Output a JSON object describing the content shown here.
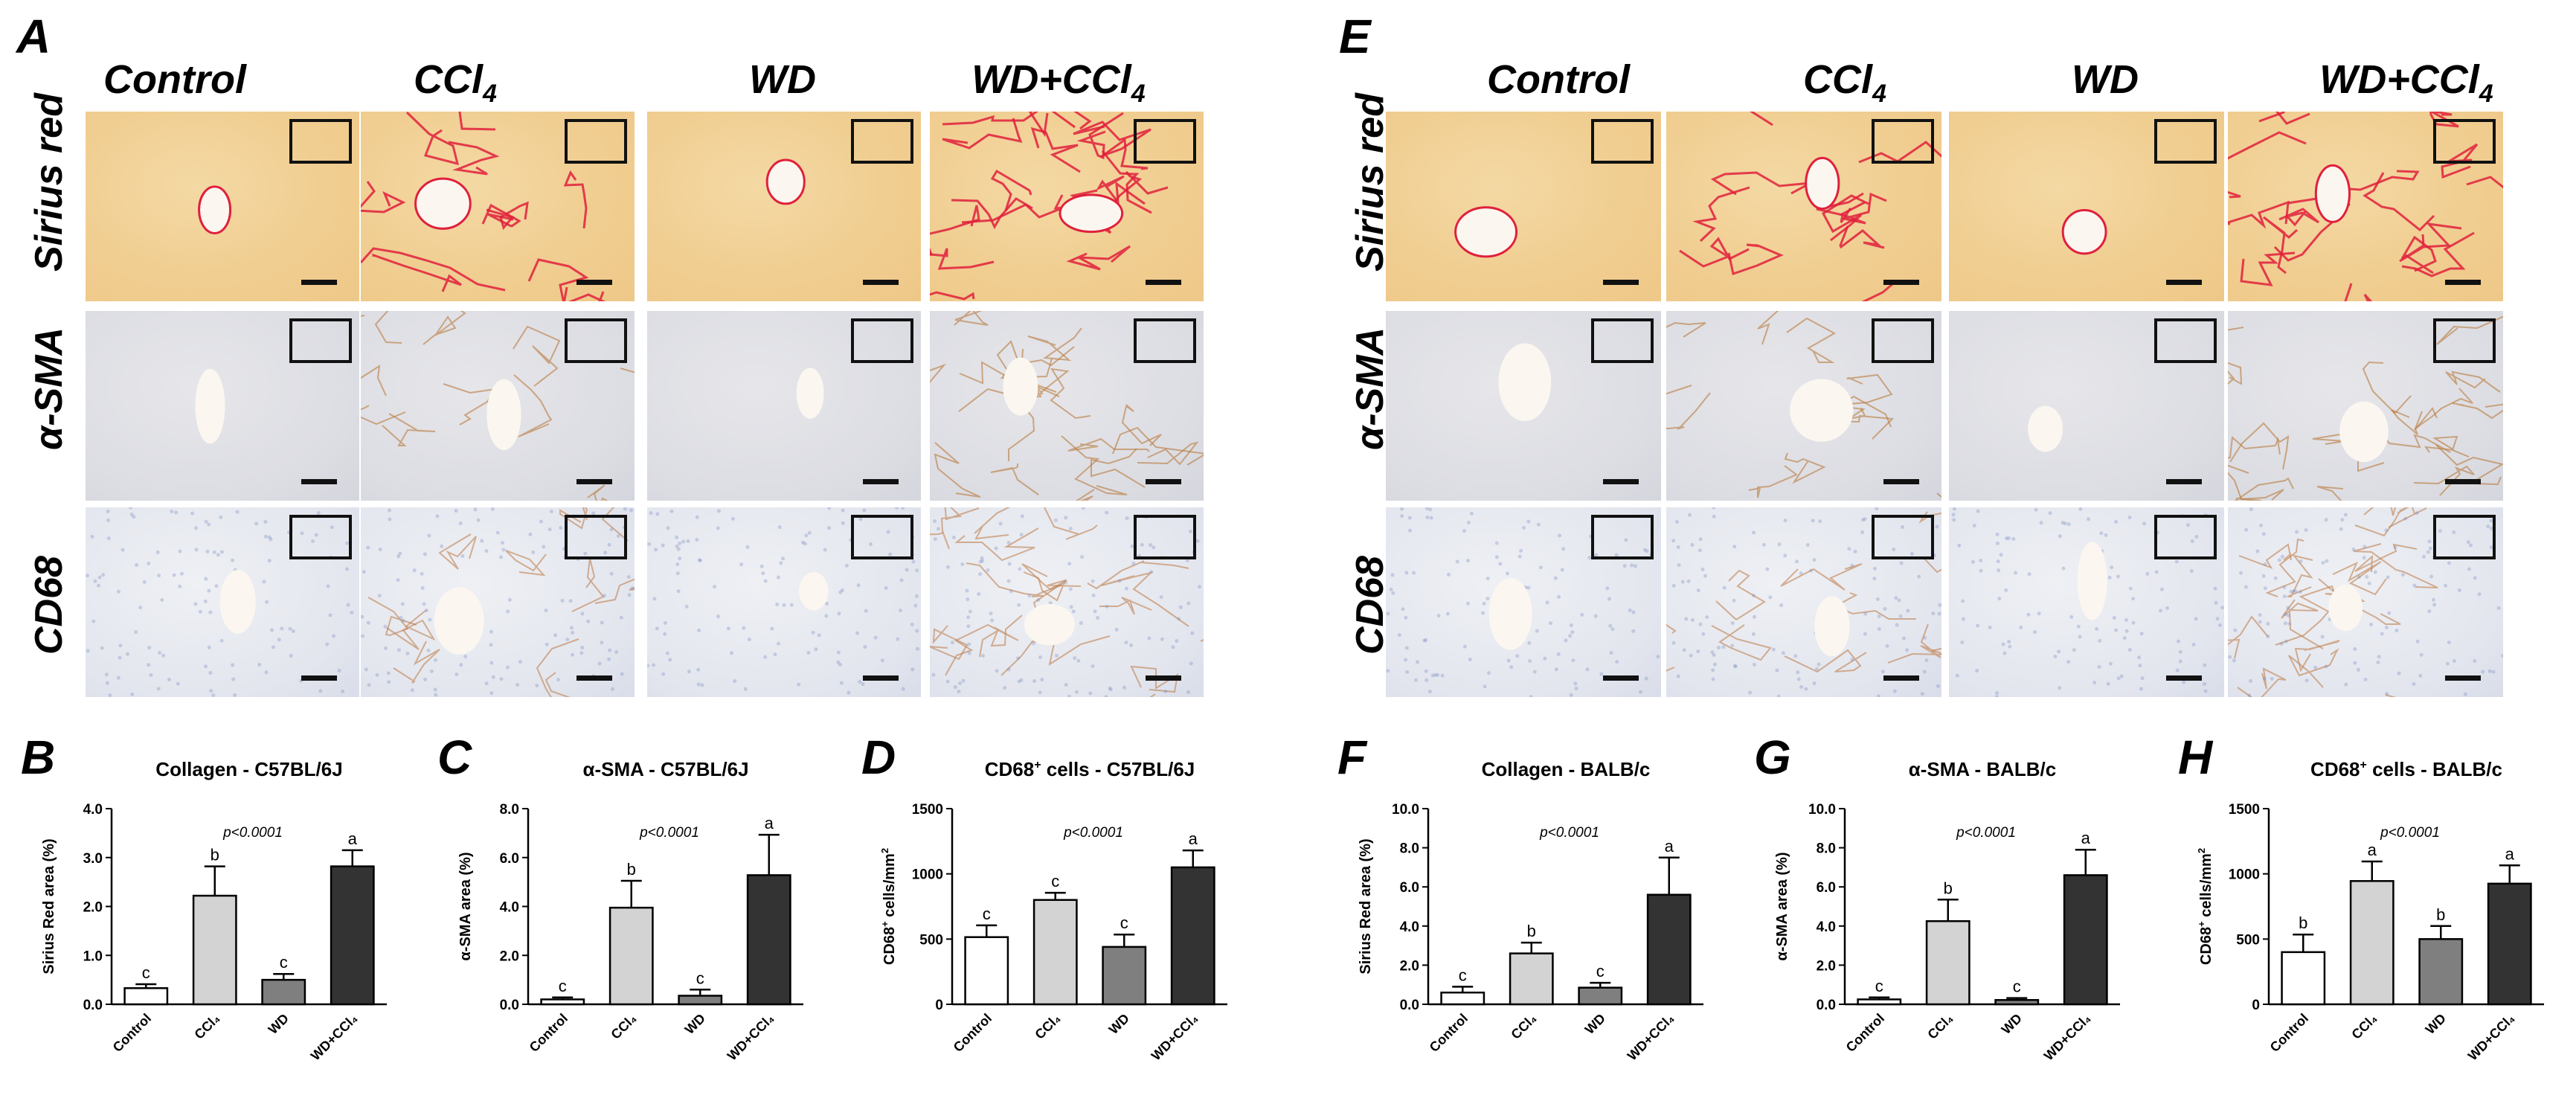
{
  "panels": {
    "A": "A",
    "E": "E",
    "B": "B",
    "C": "C",
    "D": "D",
    "F": "F",
    "G": "G",
    "H": "H"
  },
  "columns": [
    {
      "main": "Control",
      "sub": ""
    },
    {
      "main": "CCl",
      "sub": "4"
    },
    {
      "main": "WD",
      "sub": ""
    },
    {
      "main": "WD+CCl",
      "sub": "4"
    }
  ],
  "rows": [
    "Sirius red",
    "α-SMA",
    "CD68"
  ],
  "colors": {
    "control": "#ffffff",
    "ccl4": "#d3d3d3",
    "wd": "#7f7f7f",
    "wd_ccl4": "#333333",
    "sirius_fiber": "#e0203c",
    "sma_stain": "#b97a3c",
    "cd68_stain": "#c08050"
  },
  "chart_data": [
    {
      "type": "bar",
      "panel": "B",
      "title": "Collagen - C57BL/6J",
      "title_sup": "",
      "ylabel": "Sirius Red area (%)",
      "ylabel_sup": "",
      "ylim": [
        0,
        4.0
      ],
      "yticks": [
        "0.0",
        "1.0",
        "2.0",
        "3.0",
        "4.0"
      ],
      "categories": [
        "Control",
        "CCl₄",
        "WD",
        "WD+CCl₄"
      ],
      "values": [
        0.33,
        2.22,
        0.5,
        2.82
      ],
      "errors": [
        0.08,
        0.6,
        0.12,
        0.33
      ],
      "letters": [
        "c",
        "b",
        "c",
        "a"
      ],
      "pvalue": "p<0.0001"
    },
    {
      "type": "bar",
      "panel": "C",
      "title": "α-SMA - C57BL/6J",
      "title_sup": "",
      "ylabel": "α-SMA area (%)",
      "ylabel_sup": "",
      "ylim": [
        0,
        8.0
      ],
      "yticks": [
        "0.0",
        "2.0",
        "4.0",
        "6.0",
        "8.0"
      ],
      "categories": [
        "Control",
        "CCl₄",
        "WD",
        "WD+CCl₄"
      ],
      "values": [
        0.2,
        3.95,
        0.35,
        5.28
      ],
      "errors": [
        0.08,
        1.1,
        0.25,
        1.65
      ],
      "letters": [
        "c",
        "b",
        "c",
        "a"
      ],
      "pvalue": "p<0.0001"
    },
    {
      "type": "bar",
      "panel": "D",
      "title": "CD68 cells - C57BL/6J",
      "title_sup": "+",
      "ylabel": "CD68 cells/mm",
      "ylabel_sup": "+",
      "ylabel_sup2": "2",
      "ylim": [
        0,
        1500
      ],
      "yticks": [
        "0",
        "500",
        "1000",
        "1500"
      ],
      "categories": [
        "Control",
        "CCl₄",
        "WD",
        "WD+CCl₄"
      ],
      "values": [
        515,
        800,
        440,
        1050
      ],
      "errors": [
        90,
        55,
        95,
        130
      ],
      "letters": [
        "c",
        "c",
        "c",
        "a"
      ],
      "pvalue": "p<0.0001"
    },
    {
      "type": "bar",
      "panel": "F",
      "title": "Collagen - BALB/c",
      "title_sup": "",
      "ylabel": "Sirius Red area (%)",
      "ylabel_sup": "",
      "ylim": [
        0,
        10.0
      ],
      "yticks": [
        "0.0",
        "2.0",
        "4.0",
        "6.0",
        "8.0",
        "10.0"
      ],
      "categories": [
        "Control",
        "CCl₄",
        "WD",
        "WD+CCl₄"
      ],
      "values": [
        0.6,
        2.6,
        0.85,
        5.6
      ],
      "errors": [
        0.3,
        0.55,
        0.25,
        1.9
      ],
      "letters": [
        "c",
        "b",
        "c",
        "a"
      ],
      "pvalue": "p<0.0001"
    },
    {
      "type": "bar",
      "panel": "G",
      "title": "α-SMA - BALB/c",
      "title_sup": "",
      "ylabel": "α-SMA area (%)",
      "ylabel_sup": "",
      "ylim": [
        0,
        10.0
      ],
      "yticks": [
        "0.0",
        "2.0",
        "4.0",
        "6.0",
        "8.0",
        "10.0"
      ],
      "categories": [
        "Control",
        "CCl₄",
        "WD",
        "WD+CCl₄"
      ],
      "values": [
        0.25,
        4.25,
        0.22,
        6.6
      ],
      "errors": [
        0.1,
        1.1,
        0.1,
        1.3
      ],
      "letters": [
        "c",
        "b",
        "c",
        "a"
      ],
      "pvalue": "p<0.0001"
    },
    {
      "type": "bar",
      "panel": "H",
      "title": "CD68 cells - BALB/c",
      "title_sup": "+",
      "ylabel": "CD68 cells/mm",
      "ylabel_sup": "+",
      "ylabel_sup2": "2",
      "ylim": [
        0,
        1500
      ],
      "yticks": [
        "0",
        "500",
        "1000",
        "1500"
      ],
      "categories": [
        "Control",
        "CCl₄",
        "WD",
        "WD+CCl₄"
      ],
      "values": [
        400,
        945,
        500,
        925
      ],
      "errors": [
        135,
        150,
        100,
        140
      ],
      "letters": [
        "b",
        "a",
        "b",
        "a"
      ],
      "pvalue": "p<0.0001"
    }
  ]
}
